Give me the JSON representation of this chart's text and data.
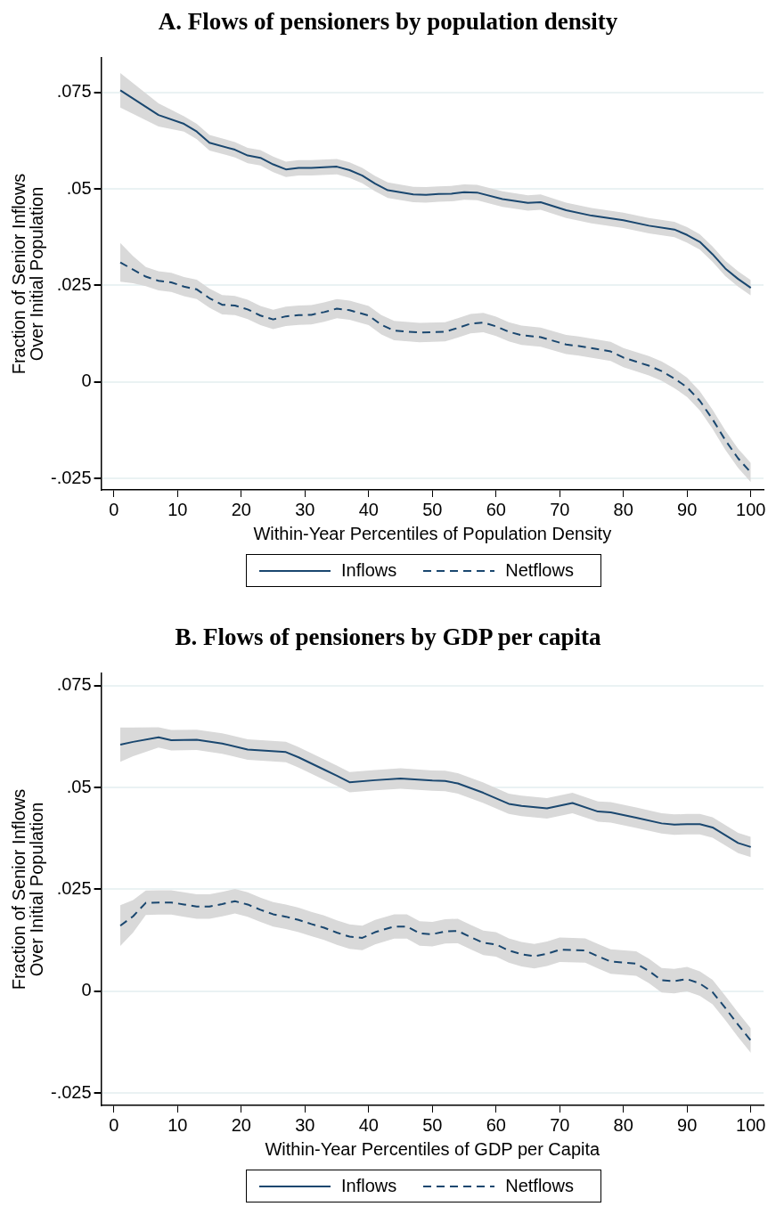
{
  "chart_data": [
    {
      "type": "line",
      "title": "A. Flows of pensioners by population density",
      "xlabel": "Within-Year Percentiles of Population Density",
      "ylabel": "Fraction of Senior Inflows\nOver Initial Population",
      "xlim": [
        -2,
        102
      ],
      "xticks": [
        0,
        10,
        20,
        30,
        40,
        50,
        60,
        70,
        80,
        90,
        100
      ],
      "ylim": [
        -0.028,
        0.084
      ],
      "yticks": [
        {
          "value": -0.025,
          "label": "-.025"
        },
        {
          "value": 0,
          "label": "0"
        },
        {
          "value": 0.025,
          "label": ".025"
        },
        {
          "value": 0.05,
          "label": ".05"
        },
        {
          "value": 0.075,
          "label": ".075"
        }
      ],
      "grid": "y",
      "legend": "bottom",
      "marker": "none",
      "series": [
        {
          "name": "Inflows",
          "color": "#1a476f",
          "line_style": "solid",
          "x": [
            1,
            7,
            11,
            13,
            15,
            19,
            21,
            23,
            25,
            27,
            29,
            31,
            35,
            37,
            39,
            41,
            43,
            47,
            49,
            51,
            53,
            55,
            57,
            61,
            65,
            67,
            71,
            75,
            80,
            84,
            88,
            90,
            92,
            94,
            96,
            98,
            100
          ],
          "values": [
            0.0756,
            0.0692,
            0.0669,
            0.0649,
            0.062,
            0.0602,
            0.0587,
            0.0581,
            0.0564,
            0.0551,
            0.0555,
            0.0555,
            0.0558,
            0.0549,
            0.0535,
            0.0514,
            0.0497,
            0.0486,
            0.0485,
            0.0487,
            0.0488,
            0.0492,
            0.0491,
            0.0474,
            0.0464,
            0.0466,
            0.0445,
            0.0431,
            0.0419,
            0.0405,
            0.0395,
            0.0381,
            0.0363,
            0.0331,
            0.0294,
            0.0267,
            0.0244
          ],
          "lower": [
            0.0711,
            0.0662,
            0.0649,
            0.0629,
            0.06,
            0.0582,
            0.0567,
            0.0561,
            0.0544,
            0.0531,
            0.0535,
            0.0535,
            0.0538,
            0.0529,
            0.0515,
            0.0494,
            0.0477,
            0.0466,
            0.0465,
            0.0467,
            0.0468,
            0.0472,
            0.0471,
            0.0454,
            0.0444,
            0.0446,
            0.0425,
            0.0411,
            0.0399,
            0.0385,
            0.0375,
            0.0361,
            0.0343,
            0.0311,
            0.0274,
            0.0247,
            0.0224
          ],
          "upper": [
            0.0801,
            0.0722,
            0.0689,
            0.0669,
            0.064,
            0.0622,
            0.0607,
            0.0601,
            0.0584,
            0.0571,
            0.0575,
            0.0575,
            0.0578,
            0.0569,
            0.0555,
            0.0534,
            0.0517,
            0.0506,
            0.0505,
            0.0507,
            0.0508,
            0.0512,
            0.0511,
            0.0494,
            0.0484,
            0.0486,
            0.0465,
            0.0451,
            0.0439,
            0.0425,
            0.0415,
            0.0401,
            0.0383,
            0.0351,
            0.0314,
            0.0287,
            0.0264
          ]
        },
        {
          "name": "Netflows",
          "color": "#1a476f",
          "line_style": "dashed",
          "x": [
            1,
            3,
            5,
            7,
            9,
            11,
            13,
            15,
            17,
            19,
            21,
            23,
            25,
            27,
            29,
            31,
            33,
            35,
            37,
            40,
            42,
            44,
            48,
            52,
            54,
            56,
            58,
            60,
            62,
            64,
            67,
            71,
            73,
            78,
            80,
            84,
            86,
            88,
            90,
            92,
            94,
            96,
            98,
            100
          ],
          "values": [
            0.031,
            0.0291,
            0.0273,
            0.0262,
            0.0258,
            0.0247,
            0.024,
            0.0217,
            0.02,
            0.0198,
            0.0188,
            0.0172,
            0.0162,
            0.017,
            0.0173,
            0.0174,
            0.0181,
            0.019,
            0.0186,
            0.0172,
            0.0148,
            0.0133,
            0.0128,
            0.013,
            0.014,
            0.0151,
            0.0154,
            0.0144,
            0.013,
            0.0121,
            0.0116,
            0.0097,
            0.0093,
            0.0079,
            0.0063,
            0.0042,
            0.0028,
            0.0009,
            -0.0014,
            -0.0049,
            -0.0097,
            -0.0151,
            -0.0198,
            -0.0235
          ],
          "lower": [
            0.026,
            0.0256,
            0.0248,
            0.0237,
            0.0233,
            0.0222,
            0.0215,
            0.0192,
            0.0175,
            0.0173,
            0.0163,
            0.0147,
            0.0137,
            0.0145,
            0.0148,
            0.0149,
            0.0156,
            0.0165,
            0.0161,
            0.0147,
            0.0123,
            0.0108,
            0.0103,
            0.0105,
            0.0115,
            0.0126,
            0.0129,
            0.0119,
            0.0105,
            0.0096,
            0.0091,
            0.0072,
            0.0068,
            0.0054,
            0.0038,
            0.0017,
            0.0003,
            -0.0016,
            -0.0039,
            -0.0074,
            -0.0122,
            -0.0176,
            -0.0223,
            -0.026
          ],
          "upper": [
            0.036,
            0.0326,
            0.0298,
            0.0287,
            0.0283,
            0.0272,
            0.0265,
            0.0242,
            0.0225,
            0.0223,
            0.0213,
            0.0197,
            0.0187,
            0.0195,
            0.0198,
            0.0199,
            0.0206,
            0.0215,
            0.0211,
            0.0197,
            0.0173,
            0.0158,
            0.0153,
            0.0155,
            0.0165,
            0.0176,
            0.0179,
            0.0169,
            0.0155,
            0.0146,
            0.0141,
            0.0122,
            0.0118,
            0.0104,
            0.0088,
            0.0067,
            0.0053,
            0.0034,
            0.0011,
            -0.0024,
            -0.0072,
            -0.0126,
            -0.0173,
            -0.021
          ]
        }
      ]
    },
    {
      "type": "line",
      "title": "B. Flows of pensioners by GDP per capita",
      "xlabel": "Within-Year Percentiles of GDP per Capita",
      "ylabel": "Fraction of Senior Inflows\nOver Initial Population",
      "xlim": [
        -2,
        102
      ],
      "xticks": [
        0,
        10,
        20,
        30,
        40,
        50,
        60,
        70,
        80,
        90,
        100
      ],
      "ylim": [
        -0.028,
        0.078
      ],
      "yticks": [
        {
          "value": -0.025,
          "label": "-.025"
        },
        {
          "value": 0,
          "label": "0"
        },
        {
          "value": 0.025,
          "label": ".025"
        },
        {
          "value": 0.05,
          "label": ".05"
        },
        {
          "value": 0.075,
          "label": ".075"
        }
      ],
      "grid": "y",
      "legend": "bottom",
      "marker": "none",
      "series": [
        {
          "name": "Inflows",
          "color": "#1a476f",
          "line_style": "solid",
          "x": [
            1,
            3,
            7,
            9,
            13,
            17,
            21,
            27,
            29,
            33,
            35,
            37,
            41,
            45,
            50,
            52,
            54,
            58,
            62,
            64,
            68,
            72,
            76,
            78,
            82,
            86,
            88,
            90,
            92,
            94,
            98,
            100
          ],
          "values": [
            0.0605,
            0.0612,
            0.0623,
            0.0616,
            0.0617,
            0.0608,
            0.0593,
            0.0587,
            0.0574,
            0.0544,
            0.0529,
            0.0513,
            0.0518,
            0.0522,
            0.0517,
            0.0516,
            0.051,
            0.0487,
            0.046,
            0.0455,
            0.0449,
            0.0462,
            0.0441,
            0.0439,
            0.0426,
            0.0412,
            0.0409,
            0.041,
            0.041,
            0.0402,
            0.0364,
            0.0354
          ],
          "lower": [
            0.0563,
            0.0577,
            0.0598,
            0.0591,
            0.0592,
            0.0583,
            0.0568,
            0.0562,
            0.0549,
            0.0519,
            0.0504,
            0.0488,
            0.0493,
            0.0497,
            0.0492,
            0.0491,
            0.0485,
            0.0462,
            0.0435,
            0.043,
            0.0424,
            0.0437,
            0.0416,
            0.0414,
            0.0401,
            0.0387,
            0.0384,
            0.0385,
            0.0385,
            0.0377,
            0.0339,
            0.0329
          ],
          "upper": [
            0.0647,
            0.0647,
            0.0648,
            0.0641,
            0.0642,
            0.0633,
            0.0618,
            0.0612,
            0.0599,
            0.0569,
            0.0554,
            0.0538,
            0.0543,
            0.0547,
            0.0542,
            0.0541,
            0.0535,
            0.0512,
            0.0485,
            0.048,
            0.0474,
            0.0487,
            0.0466,
            0.0464,
            0.0451,
            0.0437,
            0.0434,
            0.0435,
            0.0435,
            0.0427,
            0.0389,
            0.0379
          ]
        },
        {
          "name": "Netflows",
          "color": "#1a476f",
          "line_style": "dashed",
          "x": [
            1,
            3,
            5,
            7,
            9,
            11,
            13,
            15,
            17,
            19,
            21,
            23,
            25,
            27,
            29,
            31,
            33,
            35,
            37,
            39,
            41,
            44,
            46,
            48,
            50,
            52,
            54,
            56,
            58,
            60,
            62,
            64,
            66,
            68,
            70,
            74,
            76,
            78,
            82,
            84,
            86,
            88,
            90,
            92,
            94,
            96,
            98,
            100
          ],
          "values": [
            0.0161,
            0.0184,
            0.0217,
            0.0218,
            0.0218,
            0.0213,
            0.0208,
            0.0208,
            0.0214,
            0.0221,
            0.0213,
            0.02,
            0.0189,
            0.0183,
            0.0175,
            0.0165,
            0.0156,
            0.0144,
            0.0134,
            0.0131,
            0.0145,
            0.0159,
            0.0159,
            0.0142,
            0.014,
            0.0147,
            0.0148,
            0.0133,
            0.0119,
            0.0115,
            0.01,
            0.0091,
            0.0086,
            0.0092,
            0.0102,
            0.01,
            0.0086,
            0.0073,
            0.0068,
            0.005,
            0.0027,
            0.0025,
            0.003,
            0.0019,
            -0.0002,
            -0.0041,
            -0.0082,
            -0.0121
          ],
          "lower": [
            0.0111,
            0.0144,
            0.0187,
            0.0188,
            0.0188,
            0.0183,
            0.0178,
            0.0178,
            0.0184,
            0.0191,
            0.0183,
            0.017,
            0.0159,
            0.0153,
            0.0145,
            0.0135,
            0.0126,
            0.0114,
            0.0104,
            0.0101,
            0.0115,
            0.0129,
            0.0129,
            0.0112,
            0.011,
            0.0117,
            0.0118,
            0.0103,
            0.0089,
            0.0085,
            0.007,
            0.0061,
            0.0056,
            0.0062,
            0.0072,
            0.007,
            0.0056,
            0.0043,
            0.0038,
            0.002,
            -0.0003,
            -0.0005,
            0.0,
            -0.0011,
            -0.0032,
            -0.0071,
            -0.0112,
            -0.0151
          ],
          "upper": [
            0.0211,
            0.0224,
            0.0247,
            0.0248,
            0.0248,
            0.0243,
            0.0238,
            0.0238,
            0.0244,
            0.0251,
            0.0243,
            0.023,
            0.0219,
            0.0213,
            0.0205,
            0.0195,
            0.0186,
            0.0174,
            0.0164,
            0.0161,
            0.0175,
            0.0189,
            0.0189,
            0.0172,
            0.017,
            0.0177,
            0.0178,
            0.0163,
            0.0149,
            0.0145,
            0.013,
            0.0121,
            0.0116,
            0.0122,
            0.0132,
            0.013,
            0.0116,
            0.0103,
            0.0098,
            0.008,
            0.0057,
            0.0055,
            0.006,
            0.0049,
            0.0028,
            -0.0011,
            -0.0052,
            -0.0091
          ]
        }
      ]
    }
  ]
}
